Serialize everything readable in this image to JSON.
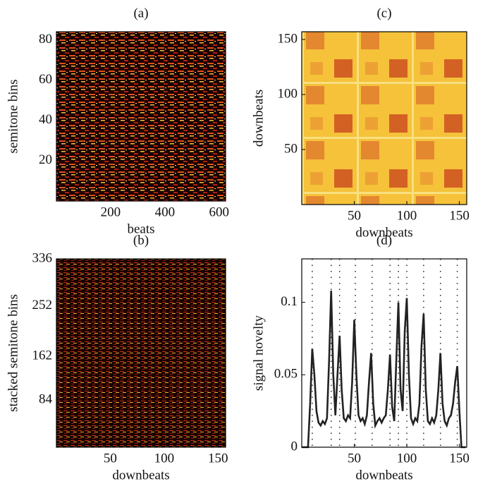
{
  "chart_data": [
    {
      "type": "heatmap",
      "title": "(a)",
      "xlabel": "beats",
      "ylabel": "semitone bins",
      "xlim": [
        0,
        624
      ],
      "xticks": [
        200,
        400,
        600
      ],
      "ylim": [
        0,
        84
      ],
      "yticks": [
        20,
        40,
        60,
        80
      ]
    },
    {
      "type": "heatmap",
      "title": "(b)",
      "xlabel": "downbeats",
      "ylabel": "stacked semitone bins",
      "xlim": [
        0,
        157
      ],
      "xticks": [
        50,
        100,
        150
      ],
      "ylim": [
        0,
        336
      ],
      "yticks": [
        84,
        162,
        252,
        336
      ]
    },
    {
      "type": "heatmap",
      "title": "(c)",
      "xlabel": "downbeats",
      "ylabel": "downbeats",
      "xlim": [
        0,
        157
      ],
      "xticks": [
        50,
        100,
        150
      ],
      "ylim": [
        0,
        157
      ],
      "yticks": [
        50,
        100,
        150
      ]
    },
    {
      "type": "line",
      "title": "(d)",
      "xlabel": "downbeats",
      "ylabel": "signal novelty",
      "xlim": [
        0,
        157
      ],
      "xticks": [
        50,
        100,
        150
      ],
      "ylim": [
        0,
        0.13
      ],
      "yticks": [
        0,
        0.05,
        0.1
      ],
      "boundaries": [
        10,
        28,
        36,
        51,
        67,
        84,
        92,
        100,
        116,
        132,
        148
      ],
      "x": [
        0,
        2,
        4,
        6,
        8,
        10,
        12,
        14,
        16,
        18,
        20,
        22,
        24,
        26,
        28,
        30,
        32,
        34,
        36,
        38,
        40,
        42,
        44,
        46,
        48,
        50,
        52,
        54,
        56,
        58,
        60,
        62,
        64,
        66,
        68,
        70,
        72,
        74,
        76,
        78,
        80,
        82,
        84,
        86,
        88,
        90,
        92,
        94,
        96,
        98,
        100,
        102,
        104,
        106,
        108,
        110,
        112,
        114,
        116,
        118,
        120,
        122,
        124,
        126,
        128,
        130,
        132,
        134,
        136,
        138,
        140,
        142,
        144,
        146,
        148,
        150,
        152,
        154,
        156
      ],
      "series": [
        {
          "color": "#222222",
          "values": [
            0,
            0,
            0,
            0,
            0.03,
            0.068,
            0.05,
            0.025,
            0.017,
            0.015,
            0.018,
            0.016,
            0.02,
            0.06,
            0.108,
            0.05,
            0.022,
            0.05,
            0.077,
            0.04,
            0.02,
            0.018,
            0.022,
            0.02,
            0.045,
            0.088,
            0.05,
            0.022,
            0.018,
            0.02,
            0.016,
            0.022,
            0.045,
            0.065,
            0.03,
            0.015,
            0.018,
            0.02,
            0.017,
            0.02,
            0.022,
            0.04,
            0.064,
            0.028,
            0.018,
            0.06,
            0.1,
            0.04,
            0.025,
            0.08,
            0.103,
            0.05,
            0.02,
            0.016,
            0.02,
            0.018,
            0.03,
            0.07,
            0.092,
            0.04,
            0.018,
            0.016,
            0.02,
            0.017,
            0.022,
            0.04,
            0.065,
            0.03,
            0.018,
            0.015,
            0.02,
            0.022,
            0.03,
            0.045,
            0.056,
            0.025,
            0,
            0,
            0
          ]
        }
      ]
    }
  ]
}
